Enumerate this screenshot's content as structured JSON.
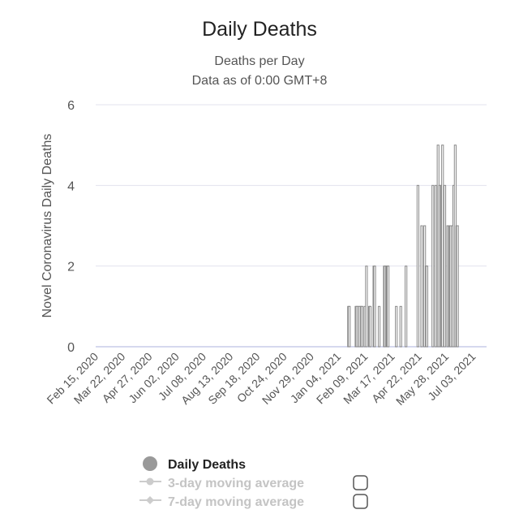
{
  "chart_data": {
    "type": "bar",
    "title": "Daily Deaths",
    "subtitle_lines": [
      "Deaths per Day",
      "Data as of 0:00 GMT+8"
    ],
    "ylabel": "Novel Coronavirus Daily Deaths",
    "xlabel": "",
    "ylim": [
      0,
      6
    ],
    "yticks": [
      0,
      2,
      4,
      6
    ],
    "grid": true,
    "x_range": [
      "2020-02-15",
      "2021-07-23"
    ],
    "xtick_labels": [
      "Feb 15, 2020",
      "Mar 22, 2020",
      "Apr 27, 2020",
      "Jun 02, 2020",
      "Jul 08, 2020",
      "Aug 13, 2020",
      "Sep 18, 2020",
      "Oct 24, 2020",
      "Nov 29, 2020",
      "Jan 04, 2021",
      "Feb 09, 2021",
      "Mar 17, 2021",
      "Apr 22, 2021",
      "May 28, 2021",
      "Jul 03, 2021"
    ],
    "series": [
      {
        "name": "Daily Deaths",
        "color": "#888888",
        "points": [
          {
            "date": "2021-01-19",
            "value": 1
          },
          {
            "date": "2021-01-20",
            "value": 1
          },
          {
            "date": "2021-01-29",
            "value": 1
          },
          {
            "date": "2021-01-30",
            "value": 1
          },
          {
            "date": "2021-02-01",
            "value": 1
          },
          {
            "date": "2021-02-03",
            "value": 1
          },
          {
            "date": "2021-02-05",
            "value": 1
          },
          {
            "date": "2021-02-06",
            "value": 1
          },
          {
            "date": "2021-02-10",
            "value": 1
          },
          {
            "date": "2021-02-12",
            "value": 2
          },
          {
            "date": "2021-02-16",
            "value": 1
          },
          {
            "date": "2021-02-17",
            "value": 1
          },
          {
            "date": "2021-02-22",
            "value": 2
          },
          {
            "date": "2021-02-23",
            "value": 2
          },
          {
            "date": "2021-03-01",
            "value": 1
          },
          {
            "date": "2021-03-08",
            "value": 2
          },
          {
            "date": "2021-03-09",
            "value": 2
          },
          {
            "date": "2021-03-11",
            "value": 2
          },
          {
            "date": "2021-03-12",
            "value": 2
          },
          {
            "date": "2021-03-13",
            "value": 2
          },
          {
            "date": "2021-03-24",
            "value": 1
          },
          {
            "date": "2021-03-30",
            "value": 1
          },
          {
            "date": "2021-04-06",
            "value": 2
          },
          {
            "date": "2021-04-22",
            "value": 4
          },
          {
            "date": "2021-04-27",
            "value": 3
          },
          {
            "date": "2021-05-01",
            "value": 3
          },
          {
            "date": "2021-05-03",
            "value": 2
          },
          {
            "date": "2021-05-04",
            "value": 2
          },
          {
            "date": "2021-05-12",
            "value": 4
          },
          {
            "date": "2021-05-16",
            "value": 4
          },
          {
            "date": "2021-05-19",
            "value": 5
          },
          {
            "date": "2021-05-21",
            "value": 4
          },
          {
            "date": "2021-05-23",
            "value": 4
          },
          {
            "date": "2021-05-24",
            "value": 4
          },
          {
            "date": "2021-05-25",
            "value": 5
          },
          {
            "date": "2021-05-28",
            "value": 4
          },
          {
            "date": "2021-06-01",
            "value": 3
          },
          {
            "date": "2021-06-03",
            "value": 3
          },
          {
            "date": "2021-06-04",
            "value": 3
          },
          {
            "date": "2021-06-05",
            "value": 3
          },
          {
            "date": "2021-06-07",
            "value": 3
          },
          {
            "date": "2021-06-09",
            "value": 4
          },
          {
            "date": "2021-06-11",
            "value": 5
          },
          {
            "date": "2021-06-13",
            "value": 3
          },
          {
            "date": "2021-06-14",
            "value": 3
          }
        ]
      }
    ],
    "legend": {
      "position": "bottom",
      "items": [
        {
          "label": "Daily Deaths",
          "color": "#999999",
          "marker": "circle",
          "active": true
        },
        {
          "label": "3-day moving average",
          "color": "#cccccc",
          "marker": "line-dot",
          "active": false,
          "has_checkbox": true
        },
        {
          "label": "7-day moving average",
          "color": "#cccccc",
          "marker": "line-diamond",
          "active": false,
          "has_checkbox": true
        }
      ]
    }
  }
}
